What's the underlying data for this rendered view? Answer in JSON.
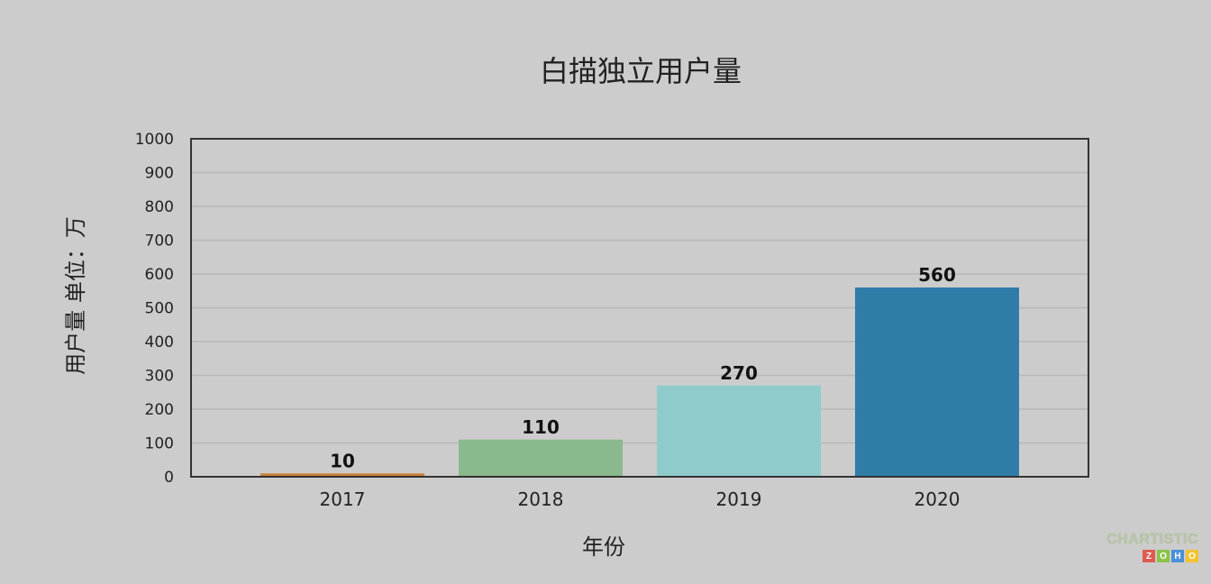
{
  "chart_data": {
    "type": "bar",
    "title": "白描独立用户量",
    "xlabel": "年份",
    "ylabel": "用户量 单位：万",
    "categories": [
      "2017",
      "2018",
      "2019",
      "2020"
    ],
    "values": [
      10,
      110,
      270,
      560
    ],
    "data_labels": [
      "10",
      "110",
      "270",
      "560"
    ],
    "bar_colors": [
      "#c9813a",
      "#8bb98e",
      "#8fcbca",
      "#2f7ca8"
    ],
    "ylim": [
      0,
      1000
    ],
    "yticks": [
      0,
      100,
      200,
      300,
      400,
      500,
      600,
      700,
      800,
      900,
      1000
    ],
    "grid": true,
    "legend": "none"
  },
  "branding": {
    "top": "CHARTISTIC",
    "bottom_letters": [
      "Z",
      "O",
      "H",
      "O"
    ],
    "bottom_colors": [
      "#e05a4f",
      "#8bc34a",
      "#4a90d9",
      "#f2c230"
    ]
  }
}
